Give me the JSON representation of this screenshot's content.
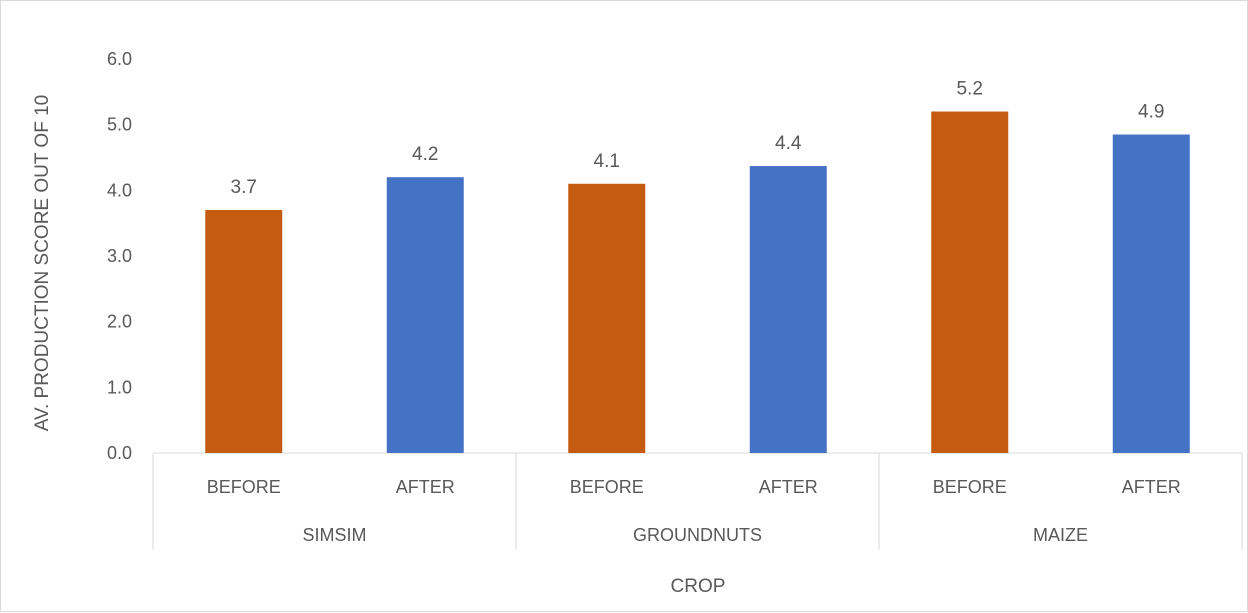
{
  "chart_data": {
    "type": "bar",
    "xlabel": "CROP",
    "ylabel": "AV. PRODUCTION SCORE OUT OF 10",
    "ylim": [
      0,
      6
    ],
    "yticks": [
      "0.0",
      "1.0",
      "2.0",
      "3.0",
      "4.0",
      "5.0",
      "6.0"
    ],
    "grid": false,
    "legend": "none",
    "groups": [
      {
        "name": "SIMSIM",
        "bars": [
          {
            "category": "BEFORE",
            "value": 3.7,
            "label": "3.7",
            "color": "#C55A11"
          },
          {
            "category": "AFTER",
            "value": 4.2,
            "label": "4.2",
            "color": "#4472C4"
          }
        ]
      },
      {
        "name": "GROUNDNUTS",
        "bars": [
          {
            "category": "BEFORE",
            "value": 4.1,
            "label": "4.1",
            "color": "#C55A11"
          },
          {
            "category": "AFTER",
            "value": 4.37,
            "label": "4.4",
            "color": "#4472C4"
          }
        ]
      },
      {
        "name": "MAIZE",
        "bars": [
          {
            "category": "BEFORE",
            "value": 5.2,
            "label": "5.2",
            "color": "#C55A11"
          },
          {
            "category": "AFTER",
            "value": 4.85,
            "label": "4.9",
            "color": "#4472C4"
          }
        ]
      }
    ]
  }
}
